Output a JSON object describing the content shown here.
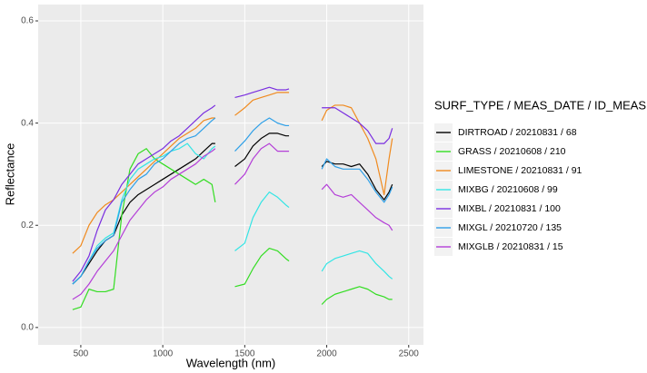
{
  "chart_data": {
    "type": "line",
    "x_label": "Wavelength (nm)",
    "y_label": "Reflectance",
    "legend_title": "SURF_TYPE / MEAS_DATE / ID_MEAS",
    "xlim": [
      240,
      2590
    ],
    "ylim": [
      -0.034,
      0.632
    ],
    "xticks": [
      500,
      1000,
      1500,
      2000,
      2500
    ],
    "yticks": [
      {
        "value": 0,
        "label": "0.0"
      },
      0.2,
      0.4,
      0.6
    ],
    "grid": true,
    "legend_position": "right",
    "x": [
      450,
      500,
      550,
      600,
      650,
      700,
      750,
      800,
      850,
      900,
      950,
      1000,
      1050,
      1100,
      1150,
      1200,
      1250,
      1300,
      1320,
      1380,
      1440,
      1500,
      1550,
      1600,
      1650,
      1700,
      1750,
      1770,
      1870,
      1970,
      2000,
      2050,
      2100,
      2150,
      2200,
      2250,
      2300,
      2350,
      2380,
      2400
    ],
    "series": [
      {
        "name": "DIRTROAD / 20210831 / 68",
        "color": "#000000",
        "values": [
          0.085,
          0.1,
          0.125,
          0.15,
          0.17,
          0.18,
          0.22,
          0.245,
          0.26,
          0.27,
          0.28,
          0.29,
          0.3,
          0.31,
          0.32,
          0.33,
          0.345,
          0.36,
          0.36,
          null,
          0.315,
          0.33,
          0.355,
          0.37,
          0.38,
          0.38,
          0.375,
          0.375,
          null,
          0.315,
          0.325,
          0.32,
          0.32,
          0.315,
          0.32,
          0.3,
          0.27,
          0.25,
          0.265,
          0.28
        ]
      },
      {
        "name": "GRASS / 20210608 / 210",
        "color": "#33dd22",
        "values": [
          0.035,
          0.04,
          0.075,
          0.07,
          0.07,
          0.075,
          0.22,
          0.31,
          0.34,
          0.35,
          0.33,
          0.32,
          0.31,
          0.3,
          0.29,
          0.28,
          0.29,
          0.28,
          0.245,
          null,
          0.08,
          0.085,
          0.115,
          0.14,
          0.155,
          0.15,
          0.135,
          0.13,
          null,
          0.045,
          0.055,
          0.065,
          0.07,
          0.075,
          0.08,
          0.075,
          0.065,
          0.06,
          0.055,
          0.055
        ]
      },
      {
        "name": "LIMESTONE / 20210831 / 91",
        "color": "#f08a1e",
        "values": [
          0.145,
          0.16,
          0.2,
          0.225,
          0.24,
          0.25,
          0.265,
          0.28,
          0.295,
          0.31,
          0.325,
          0.34,
          0.355,
          0.37,
          0.38,
          0.39,
          0.405,
          0.41,
          0.41,
          null,
          0.415,
          0.43,
          0.445,
          0.45,
          0.455,
          0.46,
          0.46,
          0.46,
          null,
          0.405,
          0.425,
          0.435,
          0.435,
          0.43,
          0.4,
          0.37,
          0.33,
          0.26,
          0.33,
          0.37
        ]
      },
      {
        "name": "MIXBG / 20210608 / 99",
        "color": "#33e5e5",
        "values": [
          0.085,
          0.1,
          0.13,
          0.16,
          0.175,
          0.185,
          0.25,
          0.29,
          0.31,
          0.32,
          0.33,
          0.335,
          0.345,
          0.35,
          0.36,
          0.34,
          0.33,
          0.35,
          0.355,
          null,
          0.15,
          0.165,
          0.215,
          0.245,
          0.265,
          0.255,
          0.24,
          0.235,
          null,
          0.11,
          0.125,
          0.135,
          0.14,
          0.145,
          0.15,
          0.145,
          0.125,
          0.11,
          0.1,
          0.095
        ]
      },
      {
        "name": "MIXBL / 20210831 / 100",
        "color": "#7a2ee0",
        "values": [
          0.09,
          0.11,
          0.14,
          0.19,
          0.23,
          0.25,
          0.28,
          0.3,
          0.32,
          0.33,
          0.34,
          0.35,
          0.365,
          0.375,
          0.39,
          0.405,
          0.42,
          0.43,
          0.435,
          null,
          0.45,
          0.455,
          0.46,
          0.465,
          0.47,
          0.465,
          0.465,
          0.467,
          null,
          0.43,
          0.43,
          0.43,
          0.42,
          0.41,
          0.4,
          0.385,
          0.36,
          0.36,
          0.37,
          0.39
        ]
      },
      {
        "name": "MIXGL / 20210720 / 135",
        "color": "#2fa0e8",
        "values": [
          0.085,
          0.1,
          0.13,
          0.155,
          0.17,
          0.18,
          0.245,
          0.27,
          0.29,
          0.3,
          0.32,
          0.33,
          0.345,
          0.36,
          0.37,
          0.375,
          0.39,
          0.405,
          0.41,
          null,
          0.345,
          0.365,
          0.385,
          0.4,
          0.41,
          0.4,
          0.395,
          0.395,
          null,
          0.31,
          0.33,
          0.315,
          0.31,
          0.31,
          0.31,
          0.29,
          0.265,
          0.245,
          0.26,
          0.275
        ]
      },
      {
        "name": "MIXGLB / 20210831 / 15",
        "color": "#b43fd8",
        "values": [
          0.055,
          0.065,
          0.085,
          0.11,
          0.13,
          0.15,
          0.18,
          0.21,
          0.23,
          0.25,
          0.265,
          0.275,
          0.29,
          0.3,
          0.31,
          0.32,
          0.335,
          0.345,
          0.35,
          null,
          0.28,
          0.3,
          0.33,
          0.35,
          0.36,
          0.345,
          0.345,
          0.345,
          null,
          0.27,
          0.28,
          0.26,
          0.255,
          0.26,
          0.245,
          0.23,
          0.215,
          0.205,
          0.2,
          0.19
        ]
      }
    ]
  }
}
